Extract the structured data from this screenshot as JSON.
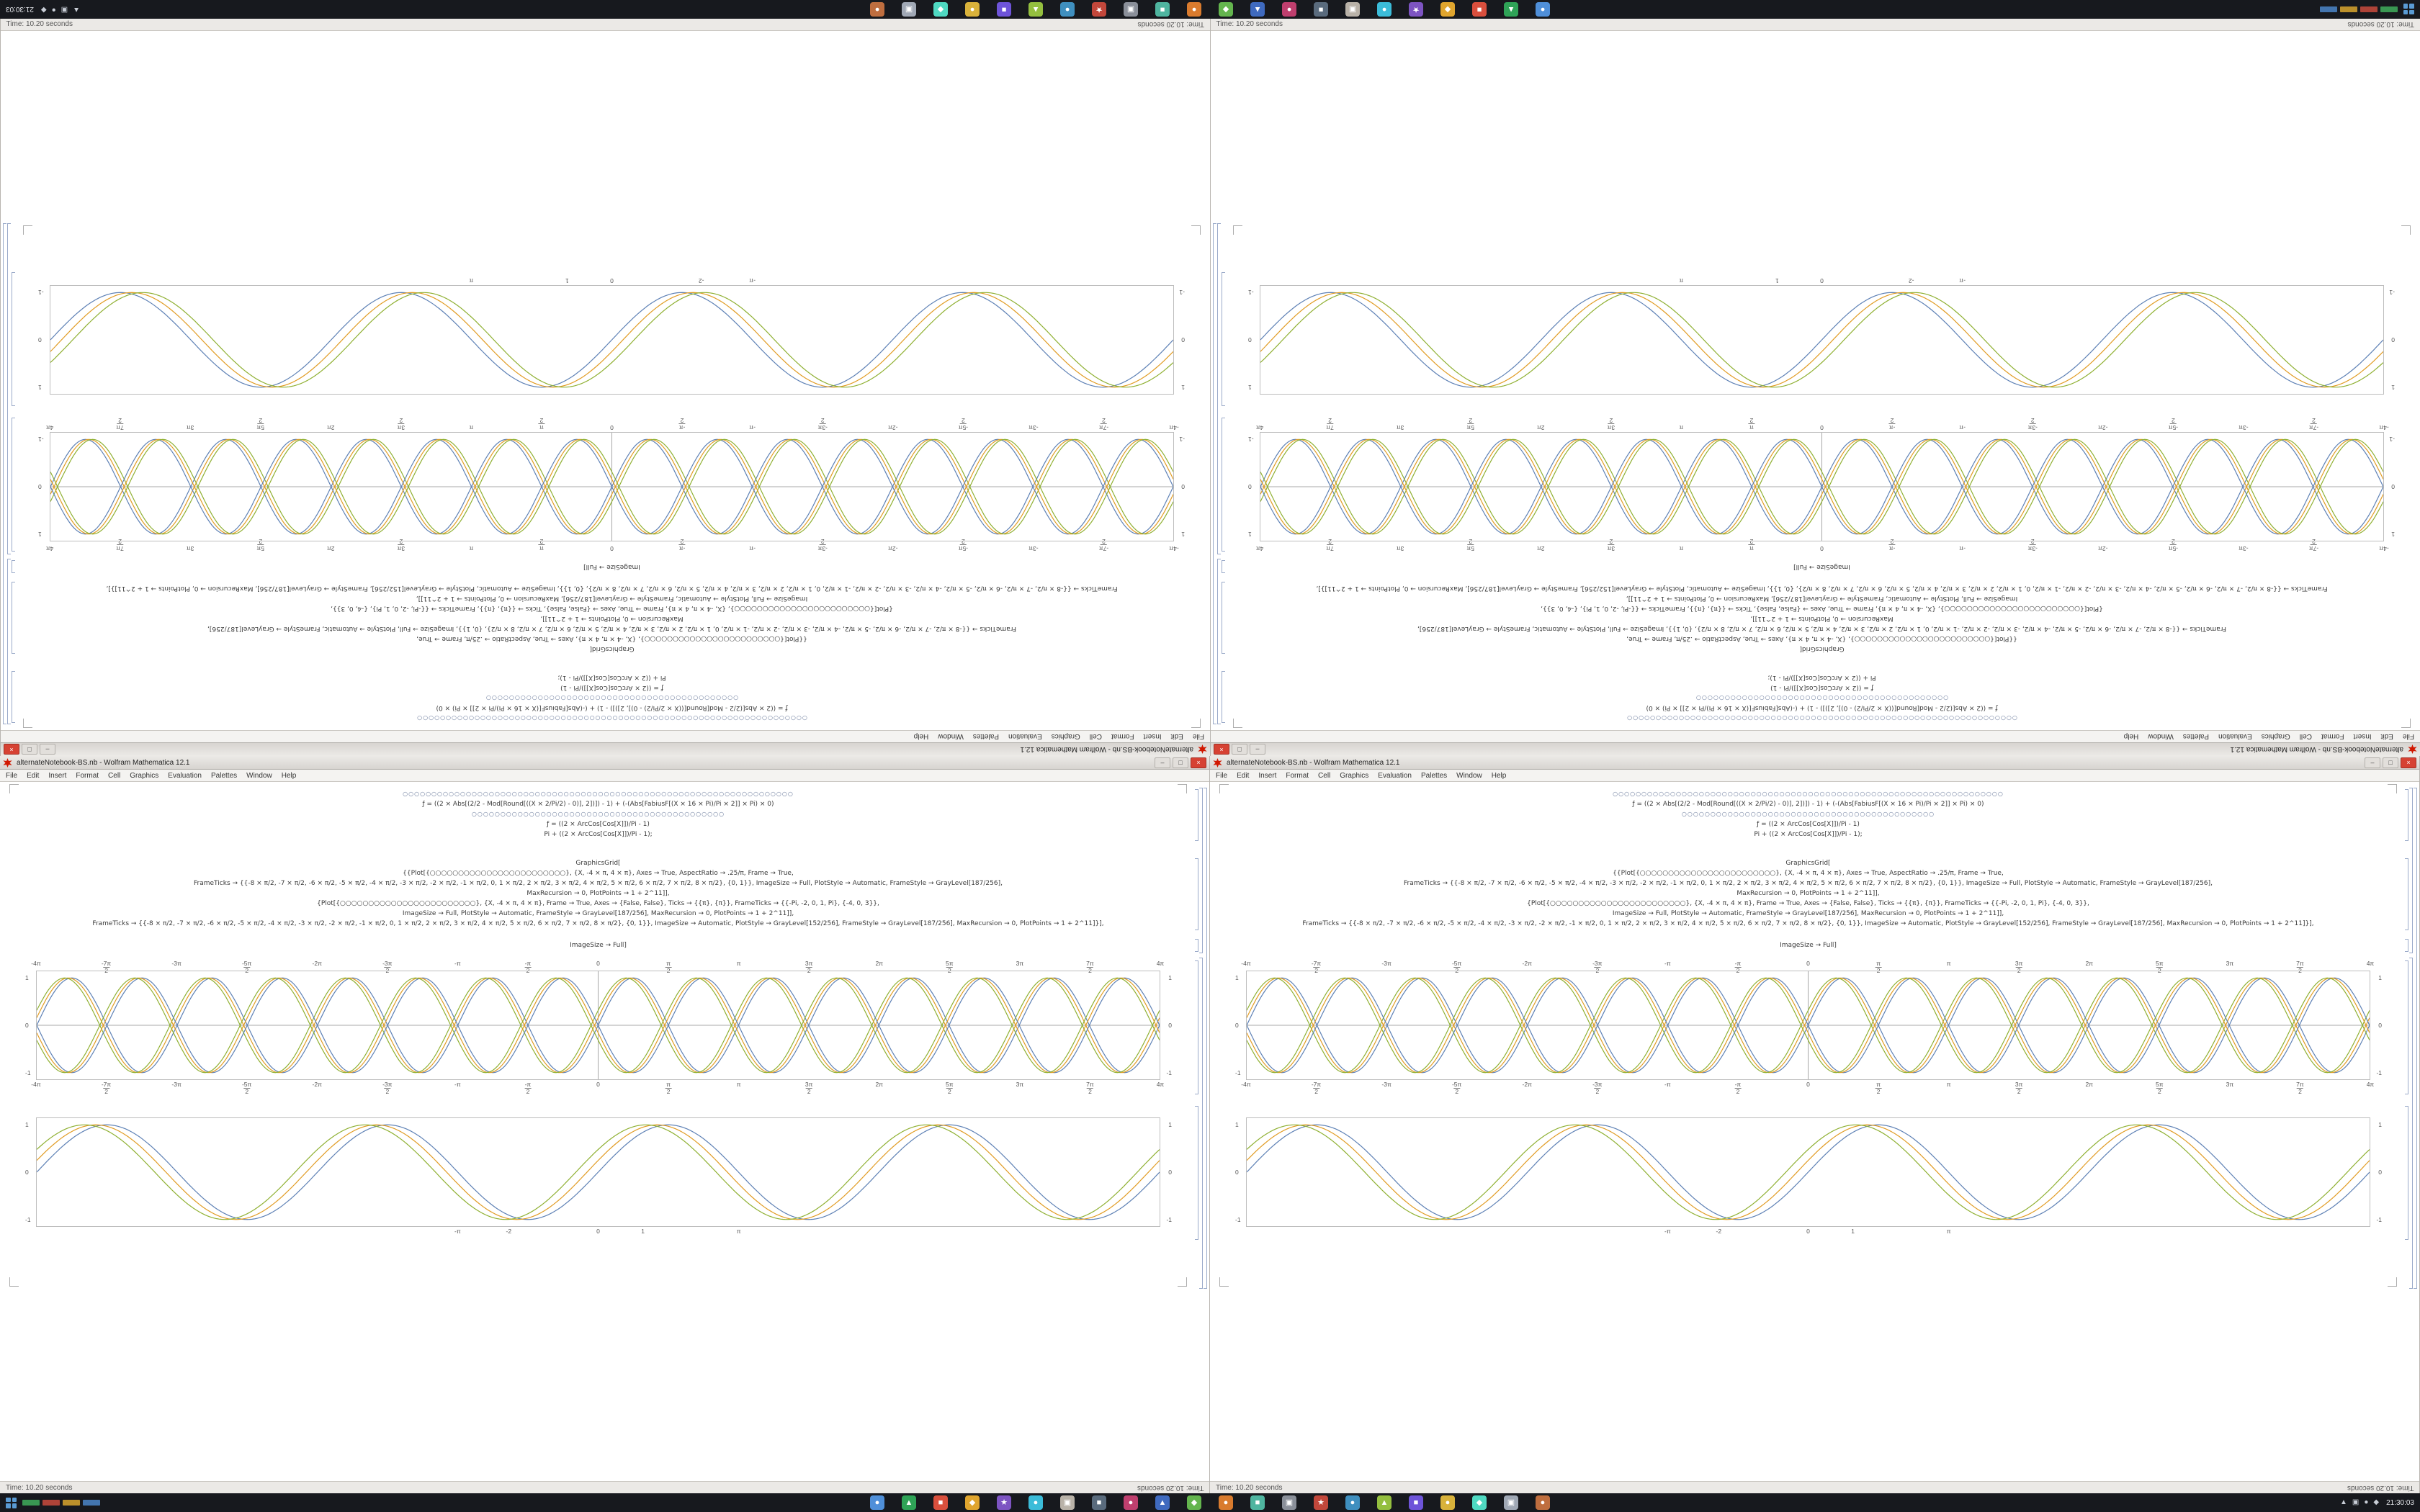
{
  "status_text": "Time: 10.20 seconds",
  "window": {
    "title": "alternateNotebook-BS.nb - Wolfram Mathematica 12.1",
    "menu_items": [
      "File",
      "Edit",
      "Insert",
      "Format",
      "Cell",
      "Graphics",
      "Evaluation",
      "Palettes",
      "Window",
      "Help"
    ],
    "buttons": {
      "minimize": "–",
      "maximize": "□",
      "close": "×"
    },
    "accent_close_color": "#d64233"
  },
  "notebook": {
    "code_cell_1": [
      "○○○○○○○○○○○○○○○○○○○○○○○○○○○○○○○○○○○○○○○○○○○○○○○○○○○○○○○○○○○○○○○○○○○○",
      "ƒ = ((2 × Abs[(2/2 - Mod[Round[((X × 2/Pi/2) - 0)], 2])]) - 1) + (-(Abs[FabiusF[(X × 16 × Pi)/Pi × 2]] × Pi) × 0)",
      "○○○○○○○○○○○○○○○○○○○○○○○○○○○○○○○○○○○○○○○○○○○○",
      "ƒ = ((2 × ArcCos[Cos[X]])/Pi - 1)",
      "Pi + ((2 × ArcCos[Cos[X]])/Pi - 1);"
    ],
    "code_cell_2": [
      "GraphicsGrid[",
      "{{Plot[{○○○○○○○○○○○○○○○○○○○○○○○○}, {X, -4 × π, 4 × π}, Axes → True, AspectRatio → .25/π, Frame → True,",
      "FrameTicks → {{-8 × π/2, -7 × π/2, -6 × π/2, -5 × π/2, -4 × π/2, -3 × π/2, -2 × π/2, -1 × π/2, 0, 1 × π/2, 2 × π/2, 3 × π/2, 4 × π/2, 5 × π/2, 6 × π/2, 7 × π/2, 8 × π/2}, {0, 1}}, ImageSize → Full, PlotStyle → Automatic, FrameStyle → GrayLevel[187/256],",
      "MaxRecursion → 0, PlotPoints → 1 + 2^11]],",
      "{Plot[{○○○○○○○○○○○○○○○○○○○○○○○○}, {X, -4 × π, 4 × π}, Frame → True, Axes → {False, False}, Ticks → {{π}, {π}}, FrameTicks → {{-Pi, -2, 0, 1, Pi}, {-4, 0, 3}},",
      "ImageSize → Full, PlotStyle → Automatic, FrameStyle → GrayLevel[187/256], MaxRecursion → 0, PlotPoints → 1 + 2^11]],",
      "FrameTicks → {{-8 × π/2, -7 × π/2, -6 × π/2, -5 × π/2, -4 × π/2, -3 × π/2, -2 × π/2, -1 × π/2, 0, 1 × π/2, 2 × π/2, 3 × π/2, 4 × π/2, 5 × π/2, 6 × π/2, 7 × π/2, 8 × π/2}, {0, 1}}, ImageSize → Automatic, PlotStyle → GrayLevel[152/256], FrameStyle → GrayLevel[187/256], MaxRecursion → 0, PlotPoints → 1 + 2^11]}],"
    ],
    "image_size_line": "ImageSize → Full]"
  },
  "chart_data": [
    {
      "type": "line",
      "title": "framed trig grid plot",
      "x_range": [
        -12.566,
        12.566
      ],
      "y_range": [
        -1.05,
        1.05
      ],
      "axes": true,
      "frame_color": "#bdbdbd",
      "x_tick_labels": [
        "-4π",
        "-7π/2",
        "-3π",
        "-5π/2",
        "-2π",
        "-3π/2",
        "-π",
        "-π/2",
        "0",
        "π/2",
        "π",
        "3π/2",
        "2π",
        "5π/2",
        "3π",
        "7π/2",
        "4π"
      ],
      "ticks_top_and_bottom": true,
      "y_tick_values": [
        1,
        0,
        -1
      ],
      "y_tick_labels": [
        "1",
        "0",
        "-1"
      ],
      "series": [
        {
          "name": "sin(2x)",
          "color": "#5E81B5",
          "freq": 2,
          "phase": 0,
          "sign": 1
        },
        {
          "name": "sin(2x+0.16)",
          "color": "#E19C24",
          "freq": 2,
          "phase": 0.16,
          "sign": 1
        },
        {
          "name": "sin(2x+0.32)",
          "color": "#8FB032",
          "freq": 2,
          "phase": 0.32,
          "sign": 1
        },
        {
          "name": "-sin(2x)",
          "color": "#5E81B5",
          "freq": 2,
          "phase": 0,
          "sign": -1
        },
        {
          "name": "-sin(2x+0.16)",
          "color": "#E19C24",
          "freq": 2,
          "phase": 0.16,
          "sign": -1
        },
        {
          "name": "-sin(2x+0.32)",
          "color": "#8FB032",
          "freq": 2,
          "phase": 0.32,
          "sign": -1
        }
      ]
    },
    {
      "type": "line",
      "title": "smooth sine plot",
      "x_range": [
        -12.566,
        12.566
      ],
      "y_range": [
        -1.05,
        1.05
      ],
      "axes": false,
      "frame_color": "#bdbdbd",
      "x_tick_values": [
        -3.1416,
        -2,
        0,
        1,
        3.1416
      ],
      "x_tick_labels": [
        "-π",
        "-2",
        "0",
        "1",
        "π"
      ],
      "ticks_top_and_bottom": false,
      "y_tick_values": [
        1,
        0,
        -1
      ],
      "y_tick_labels": [
        "1",
        "0",
        "-1"
      ],
      "series": [
        {
          "name": "sin(x)",
          "color": "#5E81B5",
          "freq": 1,
          "phase": 0,
          "sign": 1
        },
        {
          "name": "sin(x+0.25)",
          "color": "#E19C24",
          "freq": 1,
          "phase": 0.25,
          "sign": 1
        },
        {
          "name": "sin(x+0.5)",
          "color": "#8FB032",
          "freq": 1,
          "phase": 0.5,
          "sign": 1
        }
      ]
    }
  ],
  "taskbar": {
    "clock": "21:30:03",
    "tray_icons": [
      {
        "name": "tray-caret-up-icon",
        "glyph": "▲"
      },
      {
        "name": "tray-display-icon",
        "glyph": "▣"
      },
      {
        "name": "tray-network-icon",
        "glyph": "●"
      },
      {
        "name": "tray-volume-icon",
        "glyph": "◆"
      }
    ],
    "ticker_colors": [
      "#3fae5c",
      "#c94b3d",
      "#d8a62e",
      "#4b86c9"
    ],
    "apps": [
      {
        "name": "taskbar-app-icon",
        "color": "#4f8fd9",
        "glyph": "●"
      },
      {
        "name": "taskbar-app-icon",
        "color": "#2fa357",
        "glyph": "▲"
      },
      {
        "name": "taskbar-app-icon",
        "color": "#d94f3d",
        "glyph": "■"
      },
      {
        "name": "taskbar-app-icon",
        "color": "#e0a52e",
        "glyph": "◆"
      },
      {
        "name": "taskbar-app-icon",
        "color": "#7d54c2",
        "glyph": "★"
      },
      {
        "name": "taskbar-app-icon",
        "color": "#3bbcd9",
        "glyph": "●"
      },
      {
        "name": "taskbar-app-icon",
        "color": "#b9b2a8",
        "glyph": "▣"
      },
      {
        "name": "taskbar-app-icon",
        "color": "#5a6b7d",
        "glyph": "■"
      },
      {
        "name": "taskbar-app-icon",
        "color": "#bf3f6e",
        "glyph": "●"
      },
      {
        "name": "taskbar-app-icon",
        "color": "#3f6abf",
        "glyph": "▲"
      },
      {
        "name": "taskbar-app-icon",
        "color": "#64b54e",
        "glyph": "◆"
      },
      {
        "name": "taskbar-app-icon",
        "color": "#d97b2e",
        "glyph": "●"
      },
      {
        "name": "taskbar-app-icon",
        "color": "#4fb5a0",
        "glyph": "■"
      },
      {
        "name": "taskbar-app-icon",
        "color": "#8a8f99",
        "glyph": "▣"
      },
      {
        "name": "taskbar-app-icon",
        "color": "#c2473b",
        "glyph": "★"
      },
      {
        "name": "taskbar-app-icon",
        "color": "#3f8fbf",
        "glyph": "●"
      },
      {
        "name": "taskbar-app-icon",
        "color": "#94bf3f",
        "glyph": "▲"
      },
      {
        "name": "taskbar-app-icon",
        "color": "#6e54d9",
        "glyph": "■"
      },
      {
        "name": "taskbar-app-icon",
        "color": "#d9b23b",
        "glyph": "●"
      },
      {
        "name": "taskbar-app-icon",
        "color": "#4fd9c2",
        "glyph": "◆"
      },
      {
        "name": "taskbar-app-icon",
        "color": "#a0a8b5",
        "glyph": "▣"
      },
      {
        "name": "taskbar-app-icon",
        "color": "#bf6e3f",
        "glyph": "●"
      }
    ]
  }
}
